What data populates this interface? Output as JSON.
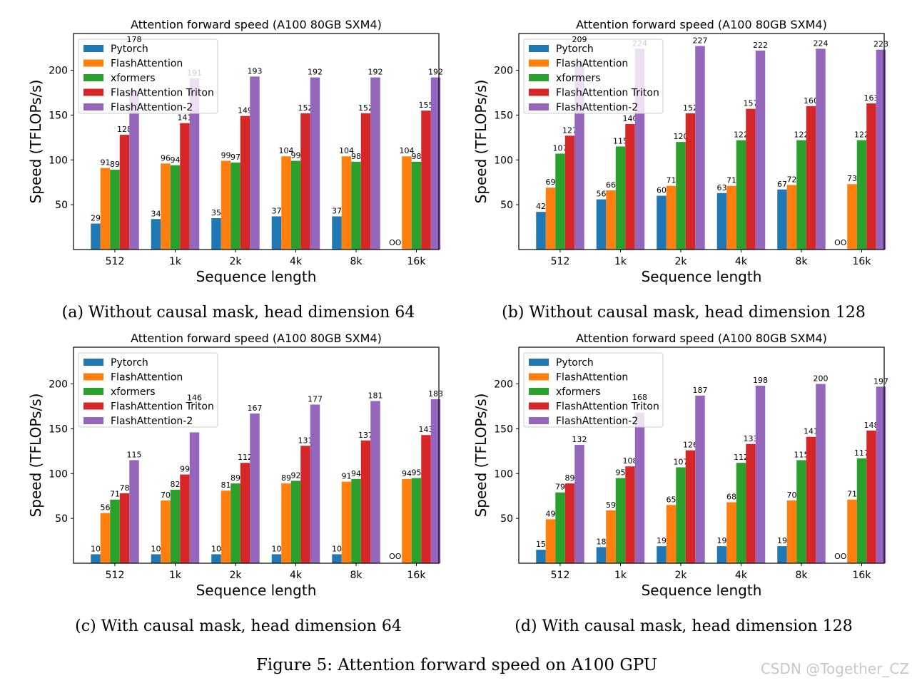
{
  "figure_caption": "Figure 5:  Attention forward speed on A100 GPU",
  "watermark": "CSDN @Together_CZ",
  "colors": {
    "Pytorch": "#1f77b4",
    "FlashAttention": "#ff7f0e",
    "xformers": "#2ca02c",
    "FlashAttention Triton": "#d62728",
    "FlashAttention-2": "#9467bd"
  },
  "chart_data": [
    {
      "type": "bar",
      "title": "Attention forward speed (A100 80GB SXM4)",
      "xlabel": "Sequence length",
      "ylabel": "Speed (TFLOPs/s)",
      "caption": "(a) Without causal mask, head dimension 64",
      "categories": [
        "512",
        "1k",
        "2k",
        "4k",
        "8k",
        "16k"
      ],
      "ylim": [
        0,
        241
      ],
      "yticks": [
        50,
        100,
        150,
        200
      ],
      "legend": "top-left",
      "grid": false,
      "missing_label": "OOM",
      "series": [
        {
          "name": "Pytorch",
          "values": [
            29,
            34,
            35,
            37,
            37,
            null
          ]
        },
        {
          "name": "FlashAttention",
          "values": [
            91,
            96,
            99,
            104,
            104,
            104
          ]
        },
        {
          "name": "xformers",
          "values": [
            89,
            94,
            97,
            99,
            98,
            98
          ]
        },
        {
          "name": "FlashAttention Triton",
          "values": [
            128,
            141,
            149,
            152,
            152,
            155
          ]
        },
        {
          "name": "FlashAttention-2",
          "values": [
            178,
            191,
            193,
            192,
            192,
            192
          ]
        }
      ]
    },
    {
      "type": "bar",
      "title": "Attention forward speed (A100 80GB SXM4)",
      "xlabel": "Sequence length",
      "ylabel": "Speed (TFLOPs/s)",
      "caption": "(b) Without causal mask, head dimension 128",
      "categories": [
        "512",
        "1k",
        "2k",
        "4k",
        "8k",
        "16k"
      ],
      "ylim": [
        0,
        241
      ],
      "yticks": [
        50,
        100,
        150,
        200
      ],
      "legend": "top-left",
      "grid": false,
      "missing_label": "OOM",
      "series": [
        {
          "name": "Pytorch",
          "values": [
            42,
            56,
            60,
            63,
            67,
            null
          ]
        },
        {
          "name": "FlashAttention",
          "values": [
            69,
            66,
            71,
            71,
            72,
            73
          ]
        },
        {
          "name": "xformers",
          "values": [
            107,
            115,
            120,
            122,
            122,
            122
          ]
        },
        {
          "name": "FlashAttention Triton",
          "values": [
            127,
            140,
            152,
            157,
            160,
            163
          ]
        },
        {
          "name": "FlashAttention-2",
          "values": [
            209,
            224,
            227,
            222,
            224,
            223
          ]
        }
      ]
    },
    {
      "type": "bar",
      "title": "Attention forward speed (A100 80GB SXM4)",
      "xlabel": "Sequence length",
      "ylabel": "Speed (TFLOPs/s)",
      "caption": "(c) With causal mask, head dimension 64",
      "categories": [
        "512",
        "1k",
        "2k",
        "4k",
        "8k",
        "16k"
      ],
      "ylim": [
        0,
        241
      ],
      "yticks": [
        50,
        100,
        150,
        200
      ],
      "legend": "top-left",
      "grid": false,
      "missing_label": "OOM",
      "series": [
        {
          "name": "Pytorch",
          "values": [
            10,
            10,
            10,
            10,
            10,
            null
          ]
        },
        {
          "name": "FlashAttention",
          "values": [
            56,
            70,
            81,
            89,
            91,
            94
          ]
        },
        {
          "name": "xformers",
          "values": [
            71,
            82,
            89,
            92,
            94,
            95
          ]
        },
        {
          "name": "FlashAttention Triton",
          "values": [
            78,
            99,
            112,
            131,
            137,
            143
          ]
        },
        {
          "name": "FlashAttention-2",
          "values": [
            115,
            146,
            167,
            177,
            181,
            183
          ]
        }
      ]
    },
    {
      "type": "bar",
      "title": "Attention forward speed (A100 80GB SXM4)",
      "xlabel": "Sequence length",
      "ylabel": "Speed (TFLOPs/s)",
      "caption": "(d) With causal mask, head dimension 128",
      "categories": [
        "512",
        "1k",
        "2k",
        "4k",
        "8k",
        "16k"
      ],
      "ylim": [
        0,
        241
      ],
      "yticks": [
        50,
        100,
        150,
        200
      ],
      "legend": "top-left",
      "grid": false,
      "missing_label": "OOM",
      "series": [
        {
          "name": "Pytorch",
          "values": [
            15,
            18,
            19,
            19,
            19,
            null
          ]
        },
        {
          "name": "FlashAttention",
          "values": [
            49,
            59,
            65,
            68,
            70,
            71
          ]
        },
        {
          "name": "xformers",
          "values": [
            79,
            95,
            107,
            112,
            115,
            117
          ]
        },
        {
          "name": "FlashAttention Triton",
          "values": [
            89,
            108,
            126,
            133,
            141,
            148
          ]
        },
        {
          "name": "FlashAttention-2",
          "values": [
            132,
            168,
            187,
            198,
            200,
            197
          ]
        }
      ]
    }
  ]
}
